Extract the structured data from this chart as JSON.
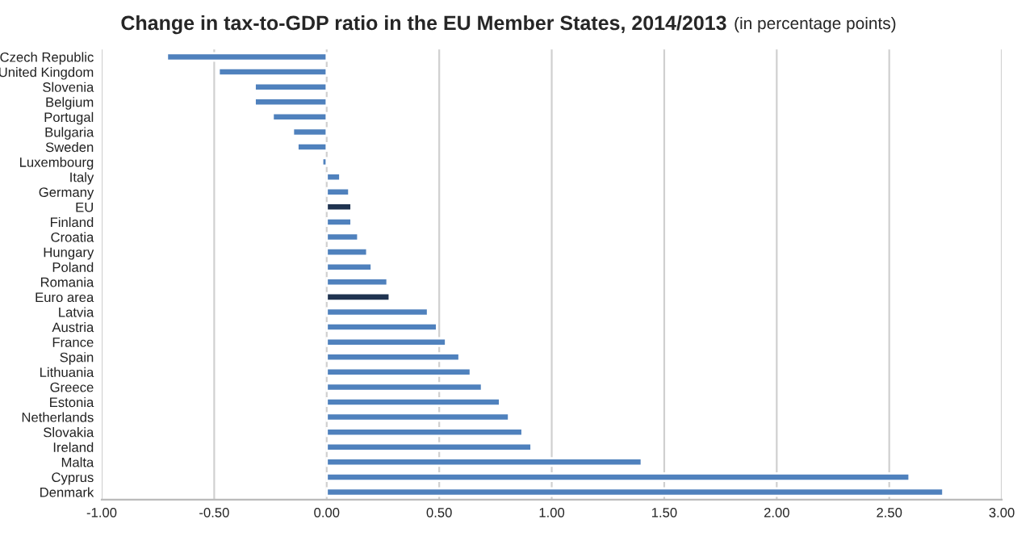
{
  "chart_data": {
    "type": "bar",
    "orientation": "horizontal",
    "title": "Change in tax-to-GDP ratio in the EU Member States, 2014/2013",
    "subtitle": "(in percentage points)",
    "categories": [
      "Czech Republic",
      "United Kingdom",
      "Slovenia",
      "Belgium",
      "Portugal",
      "Bulgaria",
      "Sweden",
      "Luxembourg",
      "Italy",
      "Germany",
      "EU",
      "Finland",
      "Croatia",
      "Hungary",
      "Poland",
      "Romania",
      "Euro area",
      "Latvia",
      "Austria",
      "France",
      "Spain",
      "Lithuania",
      "Greece",
      "Estonia",
      "Netherlands",
      "Slovakia",
      "Ireland",
      "Malta",
      "Cyprus",
      "Denmark"
    ],
    "values": [
      -0.71,
      -0.48,
      -0.32,
      -0.32,
      -0.24,
      -0.15,
      -0.13,
      -0.02,
      0.06,
      0.1,
      0.11,
      0.11,
      0.14,
      0.18,
      0.2,
      0.27,
      0.28,
      0.45,
      0.49,
      0.53,
      0.59,
      0.64,
      0.69,
      0.77,
      0.81,
      0.87,
      0.91,
      1.4,
      2.59,
      2.74
    ],
    "colors": [
      "#4f81bd",
      "#4f81bd",
      "#4f81bd",
      "#4f81bd",
      "#4f81bd",
      "#4f81bd",
      "#4f81bd",
      "#4f81bd",
      "#4f81bd",
      "#4f81bd",
      "#1f3350",
      "#4f81bd",
      "#4f81bd",
      "#4f81bd",
      "#4f81bd",
      "#4f81bd",
      "#1f3350",
      "#4f81bd",
      "#4f81bd",
      "#4f81bd",
      "#4f81bd",
      "#4f81bd",
      "#4f81bd",
      "#4f81bd",
      "#4f81bd",
      "#4f81bd",
      "#4f81bd",
      "#4f81bd",
      "#4f81bd",
      "#4f81bd"
    ],
    "xlim": [
      -1.0,
      3.0
    ],
    "xticks": [
      {
        "value": -1.0,
        "label": "-1.00"
      },
      {
        "value": -0.5,
        "label": "-0.50"
      },
      {
        "value": 0.0,
        "label": "0.00"
      },
      {
        "value": 0.5,
        "label": "0.50"
      },
      {
        "value": 1.0,
        "label": "1.00"
      },
      {
        "value": 1.5,
        "label": "1.50"
      },
      {
        "value": 2.0,
        "label": "2.00"
      },
      {
        "value": 2.5,
        "label": "2.50"
      },
      {
        "value": 3.0,
        "label": "3.00"
      }
    ],
    "grid": "x"
  }
}
